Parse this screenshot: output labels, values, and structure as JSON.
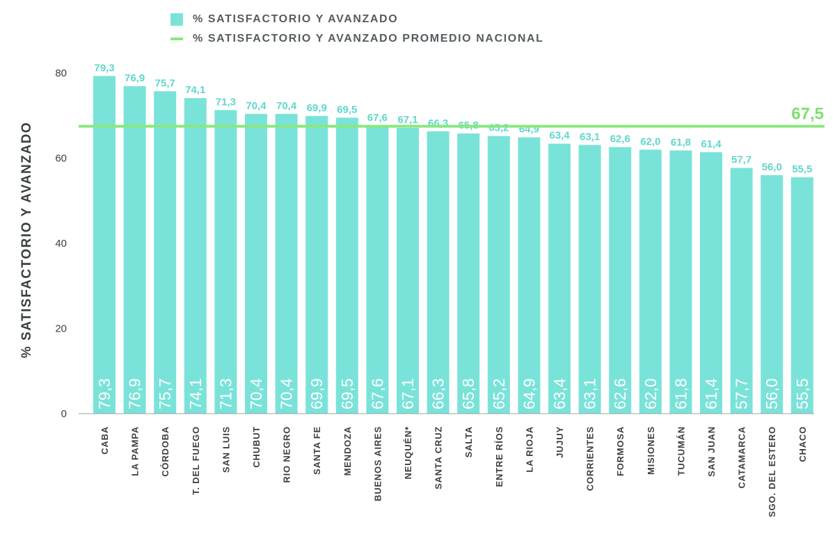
{
  "legend": {
    "bar_label": "% SATISFACTORIO Y AVANZADO",
    "line_label": "% SATISFACTORIO Y AVANZADO PROMEDIO NACIONAL"
  },
  "colors": {
    "bar": "#7ae3d9",
    "bar_label": "#5fd7cc",
    "line": "#8ae77e",
    "line_label": "#7fe070",
    "axis_text": "#3a3f42",
    "inner_label": "#ffffff"
  },
  "chart_data": {
    "type": "bar",
    "ylabel": "% SATISFACTORIO Y AVANZADO",
    "xlabel": "",
    "ylim": [
      0,
      82
    ],
    "yticks": [
      0,
      20,
      40,
      60,
      80
    ],
    "grid": false,
    "legend_position": "top",
    "categories": [
      "CABA",
      "LA PAMPA",
      "CÓRDOBA",
      "T. DEL FUEGO",
      "SAN LUIS",
      "CHUBUT",
      "RIO NEGRO",
      "SANTA FE",
      "MENDOZA",
      "BUENOS AIRES",
      "NEUQUÉN*",
      "SANTA CRUZ",
      "SALTA",
      "ENTRE RÍOS",
      "LA RIOJA",
      "JUJUY",
      "CORRIENTES",
      "FORMOSA",
      "MISIONES",
      "TUCUMÁN",
      "SAN JUAN",
      "CATAMARCA",
      "SGO. DEL ESTERO",
      "CHACO"
    ],
    "values": [
      79.3,
      76.9,
      75.7,
      74.1,
      71.3,
      70.4,
      70.4,
      69.9,
      69.5,
      67.6,
      67.1,
      66.3,
      65.8,
      65.2,
      64.9,
      63.4,
      63.1,
      62.6,
      62.0,
      61.8,
      61.4,
      57.7,
      56.0,
      55.5
    ],
    "value_labels": [
      "79,3",
      "76,9",
      "75,7",
      "74,1",
      "71,3",
      "70,4",
      "70,4",
      "69,9",
      "69,5",
      "67,6",
      "67,1",
      "66,3",
      "65,8",
      "65,2",
      "64,9",
      "63,4",
      "63,1",
      "62,6",
      "62,0",
      "61,8",
      "61,4",
      "57,7",
      "56,0",
      "55,5"
    ],
    "reference_line": {
      "value": 67.5,
      "label": "67,5"
    }
  }
}
